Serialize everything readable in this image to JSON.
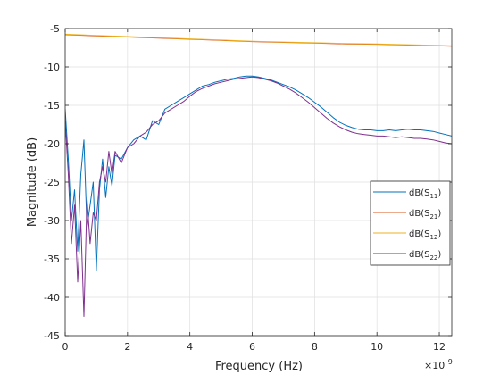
{
  "chart_data": {
    "type": "line",
    "xlabel": "Frequency (Hz)",
    "ylabel": "Magnitude (dB)",
    "x_exponent": "×10",
    "x_exponent_power": "9",
    "xlim": [
      0,
      12400000000
    ],
    "ylim": [
      -45,
      -5
    ],
    "x_ticks": [
      0,
      2000000000,
      4000000000,
      6000000000,
      8000000000,
      10000000000,
      12000000000
    ],
    "x_tick_labels": [
      "0",
      "2",
      "4",
      "6",
      "8",
      "10",
      "12"
    ],
    "y_ticks": [
      -5,
      -10,
      -15,
      -20,
      -25,
      -30,
      -35,
      -40,
      -45
    ],
    "y_tick_labels": [
      "-5",
      "-10",
      "-15",
      "-20",
      "-25",
      "-30",
      "-35",
      "-40",
      "-45"
    ],
    "grid": true,
    "legend_position": "right",
    "series": [
      {
        "name": "dB(S11)",
        "label_base": "dB(S",
        "label_sub": "11",
        "label_close": ")",
        "color": "#0072BD",
        "x": [
          0,
          100000000,
          200000000,
          300000000,
          400000000,
          500000000,
          600000000,
          700000000,
          800000000,
          900000000,
          1000000000,
          1100000000,
          1200000000,
          1300000000,
          1400000000,
          1500000000,
          1600000000,
          1800000000,
          2000000000,
          2200000000,
          2400000000,
          2600000000,
          2800000000,
          3000000000,
          3200000000,
          3400000000,
          3600000000,
          3800000000,
          4000000000,
          4200000000,
          4400000000,
          4600000000,
          4800000000,
          5000000000,
          5200000000,
          5400000000,
          5600000000,
          5800000000,
          6000000000,
          6200000000,
          6400000000,
          6600000000,
          6800000000,
          7000000000,
          7200000000,
          7400000000,
          7600000000,
          7800000000,
          8000000000,
          8200000000,
          8400000000,
          8600000000,
          8800000000,
          9000000000,
          9200000000,
          9400000000,
          9600000000,
          9800000000,
          10000000000,
          10200000000,
          10400000000,
          10600000000,
          10800000000,
          11000000000,
          11200000000,
          11400000000,
          11600000000,
          11800000000,
          12000000000,
          12200000000,
          12400000000
        ],
        "y": [
          -15.5,
          -22,
          -30,
          -26,
          -34,
          -24,
          -19.5,
          -31,
          -28,
          -25,
          -36.5,
          -26,
          -22,
          -27,
          -23,
          -25.5,
          -21.5,
          -22,
          -20.5,
          -19.5,
          -19,
          -19.5,
          -17,
          -17.5,
          -15.5,
          -15,
          -14.5,
          -14,
          -13.5,
          -13,
          -12.5,
          -12.3,
          -12,
          -11.8,
          -11.6,
          -11.5,
          -11.3,
          -11.2,
          -11.2,
          -11.3,
          -11.5,
          -11.7,
          -12,
          -12.3,
          -12.6,
          -13,
          -13.5,
          -14,
          -14.6,
          -15.2,
          -15.9,
          -16.6,
          -17.2,
          -17.6,
          -17.9,
          -18.1,
          -18.2,
          -18.2,
          -18.3,
          -18.3,
          -18.2,
          -18.3,
          -18.2,
          -18.1,
          -18.2,
          -18.2,
          -18.3,
          -18.4,
          -18.6,
          -18.8,
          -19
        ]
      },
      {
        "name": "dB(S21)",
        "label_base": "dB(S",
        "label_sub": "21",
        "label_close": ")",
        "color": "#D95319",
        "x": [
          0,
          1000000000,
          2000000000,
          3000000000,
          4000000000,
          5000000000,
          6000000000,
          7000000000,
          8000000000,
          9000000000,
          10000000000,
          11000000000,
          12000000000,
          12400000000
        ],
        "y": [
          -5.8,
          -5.95,
          -6.1,
          -6.25,
          -6.4,
          -6.55,
          -6.7,
          -6.8,
          -6.9,
          -7.0,
          -7.05,
          -7.15,
          -7.25,
          -7.3
        ]
      },
      {
        "name": "dB(S12)",
        "label_base": "dB(S",
        "label_sub": "12",
        "label_close": ")",
        "color": "#EDB120",
        "x": [
          0,
          1000000000,
          2000000000,
          3000000000,
          4000000000,
          5000000000,
          6000000000,
          7000000000,
          8000000000,
          9000000000,
          10000000000,
          11000000000,
          12000000000,
          12400000000
        ],
        "y": [
          -5.75,
          -5.9,
          -6.05,
          -6.2,
          -6.35,
          -6.5,
          -6.65,
          -6.75,
          -6.85,
          -6.95,
          -7.0,
          -7.1,
          -7.2,
          -7.25
        ]
      },
      {
        "name": "dB(S22)",
        "label_base": "dB(S",
        "label_sub": "22",
        "label_close": ")",
        "color": "#7E2F8E",
        "x": [
          0,
          100000000,
          200000000,
          300000000,
          400000000,
          500000000,
          600000000,
          700000000,
          800000000,
          900000000,
          1000000000,
          1100000000,
          1200000000,
          1300000000,
          1400000000,
          1500000000,
          1600000000,
          1800000000,
          2000000000,
          2200000000,
          2400000000,
          2600000000,
          2800000000,
          3000000000,
          3200000000,
          3400000000,
          3600000000,
          3800000000,
          4000000000,
          4200000000,
          4400000000,
          4600000000,
          4800000000,
          5000000000,
          5200000000,
          5400000000,
          5600000000,
          5800000000,
          6000000000,
          6200000000,
          6400000000,
          6600000000,
          6800000000,
          7000000000,
          7200000000,
          7400000000,
          7600000000,
          7800000000,
          8000000000,
          8200000000,
          8400000000,
          8600000000,
          8800000000,
          9000000000,
          9200000000,
          9400000000,
          9600000000,
          9800000000,
          10000000000,
          10200000000,
          10400000000,
          10600000000,
          10800000000,
          11000000000,
          11200000000,
          11400000000,
          11600000000,
          11800000000,
          12000000000,
          12200000000,
          12400000000
        ],
        "y": [
          -17,
          -24,
          -33,
          -28,
          -38,
          -30,
          -42.5,
          -27,
          -33,
          -29,
          -30,
          -25,
          -23,
          -25,
          -21,
          -24,
          -21,
          -22.5,
          -20.5,
          -20,
          -19,
          -18.5,
          -17.5,
          -17,
          -16,
          -15.5,
          -15,
          -14.5,
          -13.8,
          -13.2,
          -12.8,
          -12.5,
          -12.2,
          -12,
          -11.8,
          -11.6,
          -11.5,
          -11.4,
          -11.3,
          -11.4,
          -11.6,
          -11.8,
          -12.1,
          -12.5,
          -12.9,
          -13.4,
          -14,
          -14.6,
          -15.3,
          -16,
          -16.7,
          -17.3,
          -17.8,
          -18.2,
          -18.5,
          -18.7,
          -18.8,
          -18.9,
          -19,
          -19,
          -19.1,
          -19.2,
          -19.1,
          -19.2,
          -19.3,
          -19.3,
          -19.4,
          -19.5,
          -19.7,
          -19.9,
          -20
        ]
      }
    ]
  }
}
